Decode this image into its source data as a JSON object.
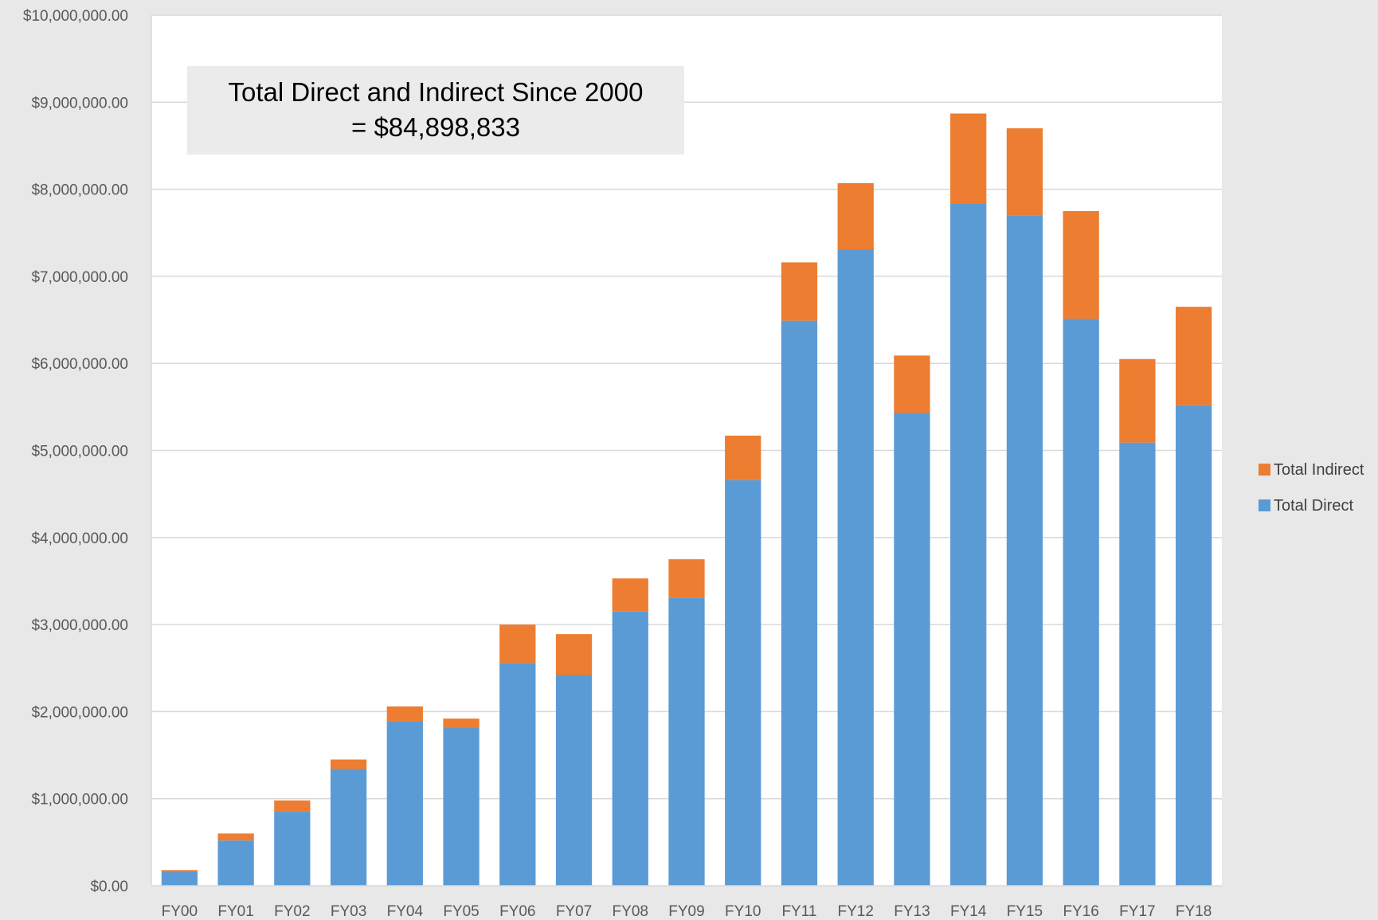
{
  "chart_data": {
    "type": "bar",
    "stacked": true,
    "categories": [
      "FY00",
      "FY01",
      "FY02",
      "FY03",
      "FY04",
      "FY05",
      "FY06",
      "FY07",
      "FY08",
      "FY09",
      "FY10",
      "FY11",
      "FY12",
      "FY13",
      "FY14",
      "FY15",
      "FY16",
      "FY17",
      "FY18"
    ],
    "series": [
      {
        "name": "Total Direct",
        "color": "#5b9bd5",
        "values": [
          160000,
          520000,
          850000,
          1340000,
          1890000,
          1820000,
          2560000,
          2420000,
          3150000,
          3310000,
          4660000,
          6490000,
          7310000,
          5430000,
          7840000,
          7700000,
          6510000,
          5090000,
          5520000
        ]
      },
      {
        "name": "Total Indirect",
        "color": "#ed7d31",
        "values": [
          20000,
          80000,
          130000,
          110000,
          170000,
          100000,
          440000,
          470000,
          380000,
          440000,
          510000,
          670000,
          760000,
          660000,
          1030000,
          1000000,
          1240000,
          960000,
          1130000
        ]
      }
    ],
    "y_ticks": [
      "$0.00",
      "$1,000,000.00",
      "$2,000,000.00",
      "$3,000,000.00",
      "$4,000,000.00",
      "$5,000,000.00",
      "$6,000,000.00",
      "$7,000,000.00",
      "$8,000,000.00",
      "$9,000,000.00",
      "$10,000,000.00"
    ],
    "ylim": [
      0,
      10000000
    ],
    "grid": true,
    "legend_position": "right",
    "title": "",
    "xlabel": "",
    "ylabel": "",
    "annotation": {
      "line1": "Total Direct and Indirect Since 2000",
      "line2": "= $84,898,833"
    }
  },
  "colors": {
    "page_background": "#e8e8e8",
    "plot_background": "#ffffff",
    "gridline": "#d9d9d9",
    "axis_text": "#595959",
    "annotation_background": "#ebebeb"
  }
}
